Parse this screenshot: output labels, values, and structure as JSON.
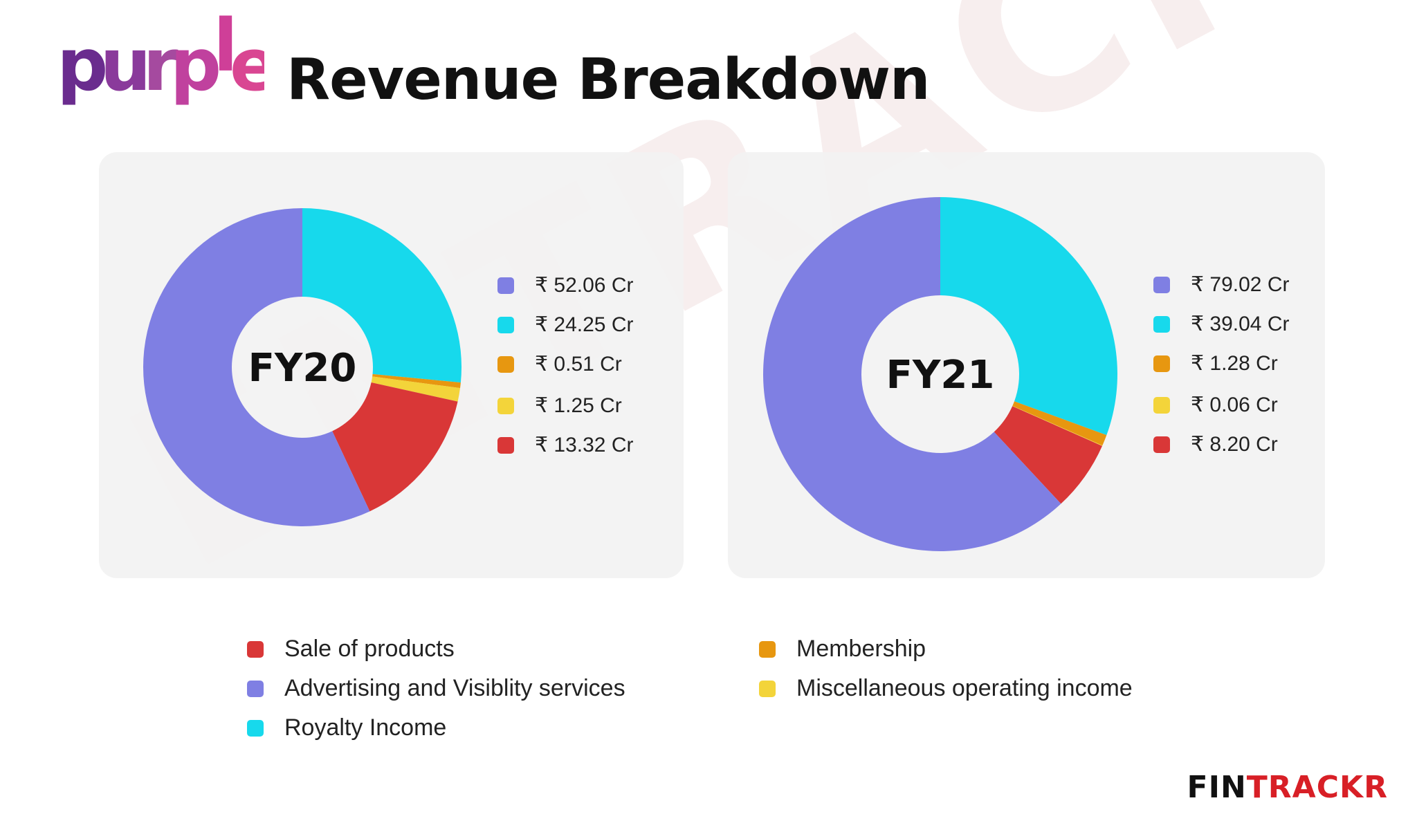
{
  "header": {
    "logo_text": "purple",
    "title": "Revenue Breakdown"
  },
  "watermark": "ENTRACKR",
  "brand": {
    "part1": "FIN",
    "part2": "TRACKR"
  },
  "colors": {
    "advertising": "#7f7fe3",
    "royalty": "#17d9ec",
    "membership": "#e79710",
    "misc": "#f3d43a",
    "products": "#d93737"
  },
  "chart_data": [
    {
      "type": "pie",
      "donut": true,
      "center_label": "FY20",
      "slices": [
        {
          "label": "Royalty Income",
          "value": 24.25,
          "display": "₹ 24.25 Cr",
          "color": "#17d9ec"
        },
        {
          "label": "Membership",
          "value": 0.51,
          "display": "₹ 0.51 Cr",
          "color": "#e79710"
        },
        {
          "label": "Miscellaneous operating income",
          "value": 1.25,
          "display": "₹ 1.25 Cr",
          "color": "#f3d43a"
        },
        {
          "label": "Sale of products",
          "value": 13.32,
          "display": "₹ 13.32 Cr",
          "color": "#d93737"
        },
        {
          "label": "Advertising and Visiblity services",
          "value": 52.06,
          "display": "₹ 52.06 Cr",
          "color": "#7f7fe3"
        }
      ],
      "value_list": [
        {
          "display": "₹ 52.06 Cr",
          "color": "#7f7fe3"
        },
        {
          "display": "₹ 24.25 Cr",
          "color": "#17d9ec"
        },
        {
          "display": "₹ 0.51 Cr",
          "color": "#e79710"
        },
        {
          "display": "₹ 1.25 Cr",
          "color": "#f3d43a"
        },
        {
          "display": "₹ 13.32 Cr",
          "color": "#d93737"
        }
      ]
    },
    {
      "type": "pie",
      "donut": true,
      "center_label": "FY21",
      "slices": [
        {
          "label": "Royalty Income",
          "value": 39.04,
          "display": "₹ 39.04 Cr",
          "color": "#17d9ec"
        },
        {
          "label": "Membership",
          "value": 1.28,
          "display": "₹ 1.28 Cr",
          "color": "#e79710"
        },
        {
          "label": "Miscellaneous operating income",
          "value": 0.06,
          "display": "₹ 0.06 Cr",
          "color": "#f3d43a"
        },
        {
          "label": "Sale of products",
          "value": 8.2,
          "display": "₹ 8.20 Cr",
          "color": "#d93737"
        },
        {
          "label": "Advertising and Visiblity services",
          "value": 79.02,
          "display": "₹ 79.02 Cr",
          "color": "#7f7fe3"
        }
      ],
      "value_list": [
        {
          "display": "₹ 79.02 Cr",
          "color": "#7f7fe3"
        },
        {
          "display": "₹ 39.04 Cr",
          "color": "#17d9ec"
        },
        {
          "display": "₹ 1.28 Cr",
          "color": "#e79710"
        },
        {
          "display": "₹ 0.06 Cr",
          "color": "#f3d43a"
        },
        {
          "display": "₹ 8.20 Cr",
          "color": "#d93737"
        }
      ]
    }
  ],
  "legend": {
    "left": [
      {
        "label": "Sale of products",
        "color": "#d93737"
      },
      {
        "label": "Advertising and Visiblity services",
        "color": "#7f7fe3"
      },
      {
        "label": "Royalty Income",
        "color": "#17d9ec"
      }
    ],
    "right": [
      {
        "label": "Membership",
        "color": "#e79710"
      },
      {
        "label": "Miscellaneous operating income",
        "color": "#f3d43a"
      }
    ]
  }
}
